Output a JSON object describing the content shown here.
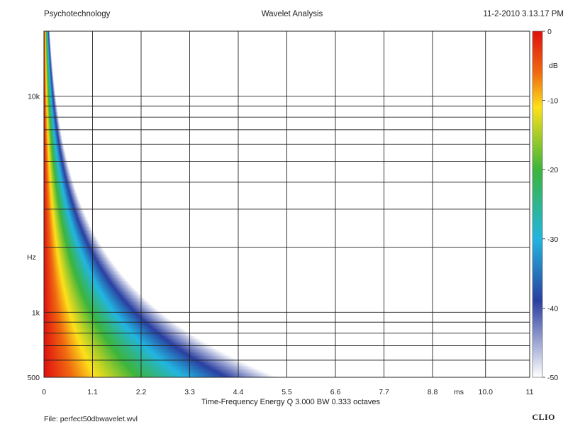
{
  "header": {
    "left": "Psychotechnology",
    "center": "Wavelet Analysis",
    "right": "11-2-2010 3.13.17 PM"
  },
  "footer": {
    "file": "File: perfect50dbwavelet.wvl",
    "brand": "CLIO"
  },
  "chart_data": {
    "type": "heatmap",
    "title": "Wavelet Analysis",
    "xlabel": "Time-Frequency Energy  Q 3.000 BW 0.333 octaves",
    "ylabel": "Hz",
    "x_unit_label": "ms",
    "xlim": [
      0,
      11
    ],
    "ylim": [
      500,
      20000
    ],
    "y_scale": "log",
    "x_ticks": [
      0,
      1.1,
      2.2,
      3.3,
      4.4,
      5.5,
      6.6,
      7.7,
      8.8,
      10.0,
      11
    ],
    "x_tick_labels": [
      "0",
      "1.1",
      "2.2",
      "3.3",
      "4.4",
      "5.5",
      "6.6",
      "7.7",
      "8.8",
      "10.0",
      "11"
    ],
    "y_tick_labels": [
      {
        "value": 10000,
        "label": "10k"
      },
      {
        "value": 1000,
        "label": "1k"
      },
      {
        "value": 500,
        "label": "500"
      }
    ],
    "y_gridlines": [
      500,
      600,
      700,
      800,
      900,
      1000,
      2000,
      3000,
      4000,
      5000,
      6000,
      7000,
      8000,
      9000,
      10000
    ],
    "grid": true,
    "colorbar": {
      "unit": "dB",
      "range": [
        -50,
        0
      ],
      "ticks": [
        0,
        -10,
        -20,
        -30,
        -40,
        -50
      ],
      "tick_labels": [
        "0",
        "-10",
        "-20",
        "-30",
        "-40",
        "-50"
      ],
      "colors": [
        "#e01010",
        "#f06a10",
        "#fde01a",
        "#3cb53c",
        "#22b5e0",
        "#2a3fa0",
        "#ffffff"
      ]
    },
    "energy_model": {
      "description": "wavelet energy decays in time; decay time inversely proportional to frequency",
      "extent_at_500Hz_ms": 5.3,
      "extent_at_1kHz_ms": 2.7
    },
    "annotations": [
      "Hz",
      "ms"
    ]
  }
}
